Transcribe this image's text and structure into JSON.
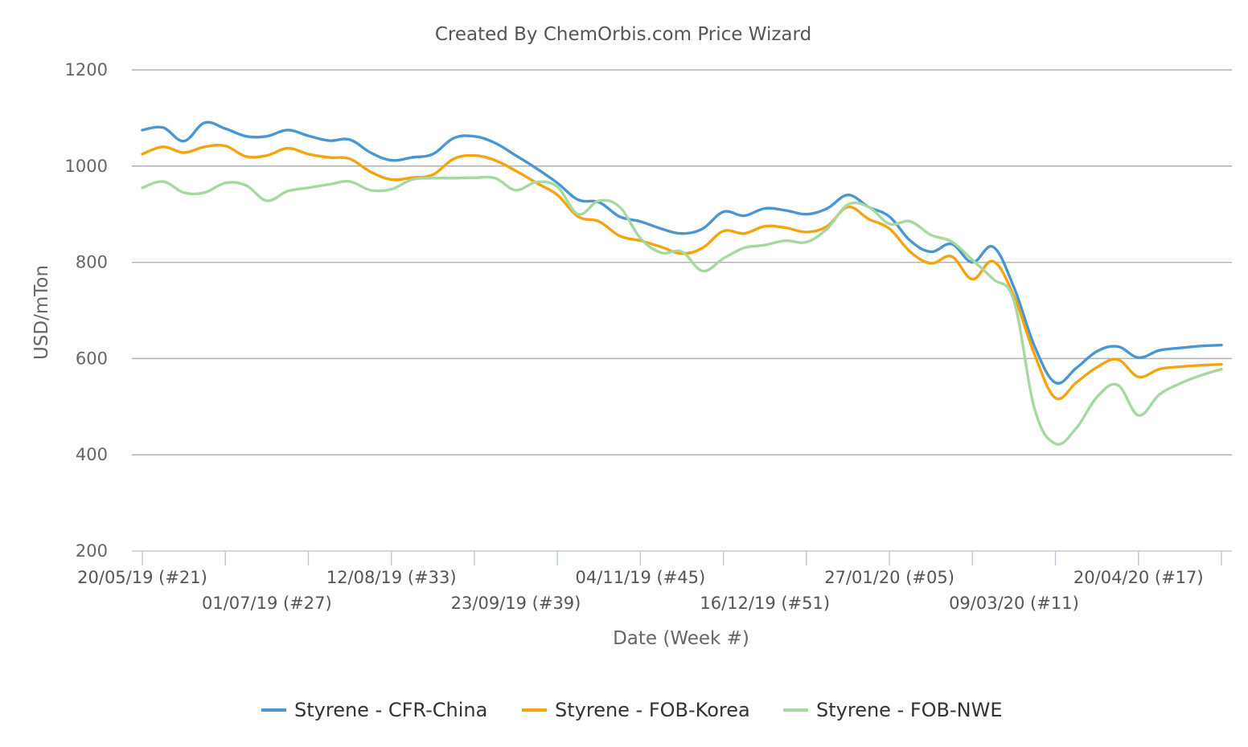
{
  "chart_data": {
    "type": "line",
    "title": "Created By ChemOrbis.com Price Wizard",
    "xlabel": "Date (Week #)",
    "ylabel": "USD/mTon",
    "ylim": [
      200,
      1200
    ],
    "yticks": [
      200,
      400,
      600,
      800,
      1000,
      1200
    ],
    "grid": true,
    "legend_position": "bottom",
    "x_weeks_total": 52,
    "x_labels": [
      {
        "week": 0,
        "label": "20/05/19 (#21)",
        "row": 1
      },
      {
        "week": 6,
        "label": "01/07/19 (#27)",
        "row": 2
      },
      {
        "week": 12,
        "label": "12/08/19 (#33)",
        "row": 1
      },
      {
        "week": 18,
        "label": "23/09/19 (#39)",
        "row": 2
      },
      {
        "week": 24,
        "label": "04/11/19 (#45)",
        "row": 1
      },
      {
        "week": 30,
        "label": "16/12/19 (#51)",
        "row": 2
      },
      {
        "week": 36,
        "label": "27/01/20 (#05)",
        "row": 1
      },
      {
        "week": 42,
        "label": "09/03/20 (#11)",
        "row": 2
      },
      {
        "week": 48,
        "label": "20/04/20 (#17)",
        "row": 1
      }
    ],
    "series": [
      {
        "name": "Styrene - CFR-China",
        "color": "#4a96d2",
        "points": [
          [
            0,
            1075
          ],
          [
            1,
            1080
          ],
          [
            2,
            1052
          ],
          [
            3,
            1090
          ],
          [
            4,
            1078
          ],
          [
            5,
            1062
          ],
          [
            6,
            1062
          ],
          [
            7,
            1075
          ],
          [
            8,
            1063
          ],
          [
            9,
            1053
          ],
          [
            10,
            1055
          ],
          [
            11,
            1028
          ],
          [
            12,
            1012
          ],
          [
            13,
            1018
          ],
          [
            14,
            1025
          ],
          [
            15,
            1058
          ],
          [
            16,
            1062
          ],
          [
            17,
            1048
          ],
          [
            18,
            1022
          ],
          [
            19,
            995
          ],
          [
            20,
            965
          ],
          [
            21,
            930
          ],
          [
            22,
            925
          ],
          [
            23,
            895
          ],
          [
            24,
            885
          ],
          [
            25,
            870
          ],
          [
            26,
            860
          ],
          [
            27,
            870
          ],
          [
            28,
            905
          ],
          [
            29,
            897
          ],
          [
            30,
            912
          ],
          [
            31,
            908
          ],
          [
            32,
            900
          ],
          [
            33,
            912
          ],
          [
            34,
            940
          ],
          [
            35,
            915
          ],
          [
            36,
            895
          ],
          [
            37,
            845
          ],
          [
            38,
            822
          ],
          [
            39,
            838
          ],
          [
            40,
            800
          ],
          [
            41,
            832
          ],
          [
            42,
            748
          ],
          [
            43,
            625
          ],
          [
            44,
            550
          ],
          [
            45,
            580
          ],
          [
            46,
            615
          ],
          [
            47,
            625
          ],
          [
            48,
            602
          ],
          [
            49,
            617
          ],
          [
            50,
            622
          ],
          [
            51,
            626
          ],
          [
            52,
            628
          ]
        ]
      },
      {
        "name": "Styrene - FOB-Korea",
        "color": "#f5a40f",
        "points": [
          [
            0,
            1025
          ],
          [
            1,
            1040
          ],
          [
            2,
            1028
          ],
          [
            3,
            1040
          ],
          [
            4,
            1042
          ],
          [
            5,
            1020
          ],
          [
            6,
            1022
          ],
          [
            7,
            1037
          ],
          [
            8,
            1025
          ],
          [
            9,
            1018
          ],
          [
            10,
            1015
          ],
          [
            11,
            988
          ],
          [
            12,
            972
          ],
          [
            13,
            976
          ],
          [
            14,
            982
          ],
          [
            15,
            1015
          ],
          [
            16,
            1022
          ],
          [
            17,
            1012
          ],
          [
            18,
            990
          ],
          [
            19,
            965
          ],
          [
            20,
            940
          ],
          [
            21,
            895
          ],
          [
            22,
            885
          ],
          [
            23,
            855
          ],
          [
            24,
            845
          ],
          [
            25,
            832
          ],
          [
            26,
            818
          ],
          [
            27,
            830
          ],
          [
            28,
            865
          ],
          [
            29,
            860
          ],
          [
            30,
            875
          ],
          [
            31,
            872
          ],
          [
            32,
            863
          ],
          [
            33,
            875
          ],
          [
            34,
            915
          ],
          [
            35,
            890
          ],
          [
            36,
            870
          ],
          [
            37,
            822
          ],
          [
            38,
            798
          ],
          [
            39,
            812
          ],
          [
            40,
            765
          ],
          [
            41,
            802
          ],
          [
            42,
            730
          ],
          [
            43,
            608
          ],
          [
            44,
            518
          ],
          [
            45,
            550
          ],
          [
            46,
            582
          ],
          [
            47,
            598
          ],
          [
            48,
            562
          ],
          [
            49,
            578
          ],
          [
            50,
            583
          ],
          [
            51,
            586
          ],
          [
            52,
            588
          ]
        ]
      },
      {
        "name": "Styrene - FOB-NWE",
        "color": "#a6d9a0",
        "points": [
          [
            0,
            955
          ],
          [
            1,
            968
          ],
          [
            2,
            945
          ],
          [
            3,
            945
          ],
          [
            4,
            965
          ],
          [
            5,
            960
          ],
          [
            6,
            928
          ],
          [
            7,
            948
          ],
          [
            8,
            955
          ],
          [
            9,
            962
          ],
          [
            10,
            968
          ],
          [
            11,
            950
          ],
          [
            12,
            952
          ],
          [
            13,
            972
          ],
          [
            14,
            975
          ],
          [
            15,
            975
          ],
          [
            16,
            976
          ],
          [
            17,
            975
          ],
          [
            18,
            950
          ],
          [
            19,
            967
          ],
          [
            20,
            957
          ],
          [
            21,
            900
          ],
          [
            22,
            928
          ],
          [
            23,
            915
          ],
          [
            24,
            850
          ],
          [
            25,
            820
          ],
          [
            26,
            822
          ],
          [
            27,
            782
          ],
          [
            28,
            808
          ],
          [
            29,
            830
          ],
          [
            30,
            836
          ],
          [
            31,
            845
          ],
          [
            32,
            842
          ],
          [
            33,
            870
          ],
          [
            34,
            920
          ],
          [
            35,
            915
          ],
          [
            36,
            880
          ],
          [
            37,
            885
          ],
          [
            38,
            857
          ],
          [
            39,
            843
          ],
          [
            40,
            805
          ],
          [
            41,
            765
          ],
          [
            42,
            720
          ],
          [
            43,
            495
          ],
          [
            44,
            423
          ],
          [
            45,
            455
          ],
          [
            46,
            520
          ],
          [
            47,
            545
          ],
          [
            48,
            482
          ],
          [
            49,
            525
          ],
          [
            50,
            548
          ],
          [
            51,
            565
          ],
          [
            52,
            578
          ]
        ]
      }
    ]
  }
}
